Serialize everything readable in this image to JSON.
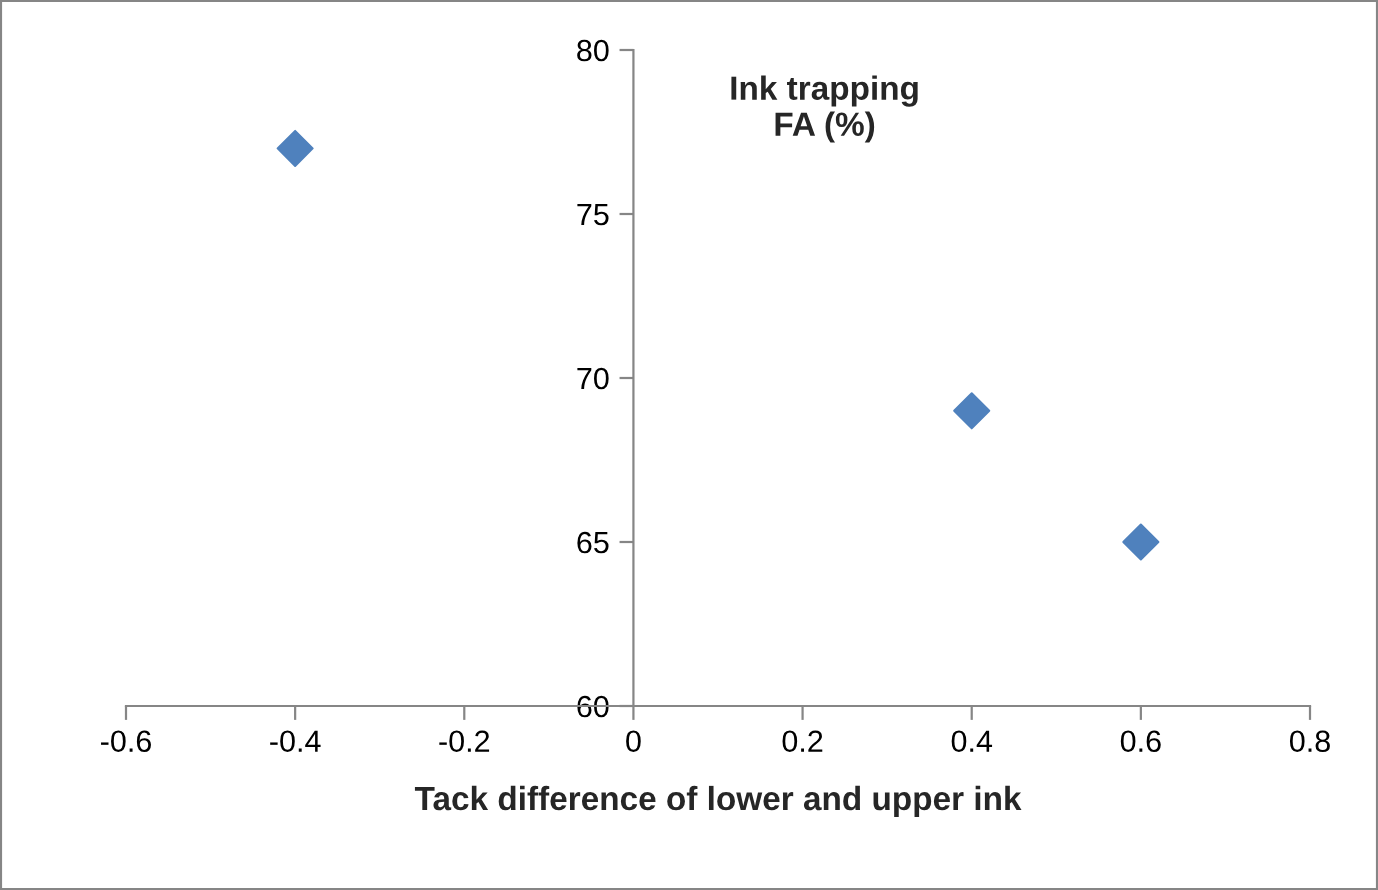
{
  "chart_data": {
    "type": "scatter",
    "xlabel": "Tack difference of lower and upper ink",
    "ylabel": "Ink trapping\nFA (%)",
    "x": [
      -0.4,
      0.4,
      0.6
    ],
    "series": [
      {
        "color": "#4f81bd",
        "values": [
          77,
          69,
          65
        ]
      }
    ],
    "marker": "diamond",
    "xlim": [
      -0.6,
      0.8
    ],
    "xticks": [
      -0.6,
      -0.4,
      -0.2,
      0,
      0.2,
      0.4,
      0.6,
      0.8
    ],
    "ylim": [
      60,
      80
    ],
    "yticks": [
      60,
      65,
      70,
      75,
      80
    ],
    "grid": false,
    "legend": false
  }
}
